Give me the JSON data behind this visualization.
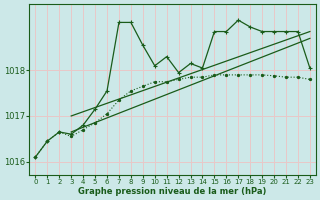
{
  "xlabel": "Graphe pression niveau de la mer (hPa)",
  "bg_color": "#cce8e8",
  "grid_color": "#e8c8c8",
  "line_color": "#1a5c1a",
  "ylim": [
    1015.7,
    1019.45
  ],
  "yticks": [
    1016,
    1017,
    1018
  ],
  "xlim": [
    -0.5,
    23.5
  ],
  "xticks": [
    0,
    1,
    2,
    3,
    4,
    5,
    6,
    7,
    8,
    9,
    10,
    11,
    12,
    13,
    14,
    15,
    16,
    17,
    18,
    19,
    20,
    21,
    22,
    23
  ],
  "series_dotted": {
    "x": [
      0,
      1,
      2,
      3,
      4,
      5,
      6,
      7,
      8,
      9,
      10,
      11,
      12,
      13,
      14,
      15,
      16,
      17,
      18,
      19,
      20,
      21,
      22,
      23
    ],
    "y": [
      1016.1,
      1016.45,
      1016.65,
      1016.55,
      1016.7,
      1016.85,
      1017.05,
      1017.35,
      1017.55,
      1017.65,
      1017.75,
      1017.75,
      1017.8,
      1017.85,
      1017.85,
      1017.9,
      1017.9,
      1017.9,
      1017.9,
      1017.9,
      1017.88,
      1017.85,
      1017.85,
      1017.8
    ]
  },
  "series_plus": {
    "x": [
      0,
      1,
      2,
      3,
      4,
      5,
      6,
      7,
      8,
      9,
      10,
      11,
      12,
      13,
      14,
      15,
      16,
      17,
      18,
      19,
      20,
      21,
      22,
      23
    ],
    "y": [
      1016.1,
      1016.45,
      1016.65,
      1016.6,
      1016.8,
      1017.15,
      1017.55,
      1019.05,
      1019.05,
      1018.55,
      1018.1,
      1018.3,
      1017.95,
      1018.15,
      1018.05,
      1018.85,
      1018.85,
      1019.1,
      1018.95,
      1018.85,
      1018.85,
      1018.85,
      1018.85,
      1018.05
    ]
  },
  "trend1_x": [
    3,
    23
  ],
  "trend1_y": [
    1017.0,
    1018.85
  ],
  "trend2_x": [
    3,
    23
  ],
  "trend2_y": [
    1016.65,
    1018.7
  ]
}
